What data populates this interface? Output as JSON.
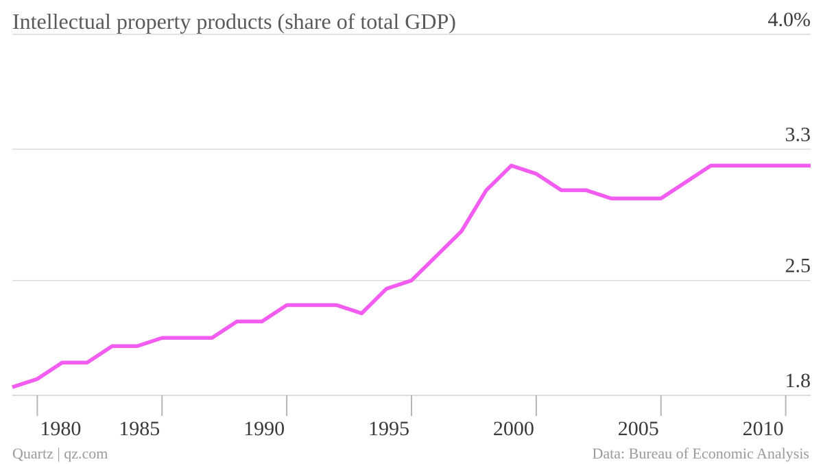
{
  "chart_data": {
    "type": "line",
    "title": "Intellectual property products (share of total GDP)",
    "xlabel": "",
    "ylabel": "",
    "x": [
      1979,
      1980,
      1981,
      1982,
      1983,
      1984,
      1985,
      1986,
      1987,
      1988,
      1989,
      1990,
      1991,
      1992,
      1993,
      1994,
      1995,
      1996,
      1997,
      1998,
      1999,
      2000,
      2001,
      2002,
      2003,
      2004,
      2005,
      2006,
      2007,
      2008,
      2009,
      2010,
      2011
    ],
    "series": [
      {
        "values": [
          1.85,
          1.9,
          2.0,
          2.0,
          2.1,
          2.1,
          2.15,
          2.15,
          2.15,
          2.25,
          2.25,
          2.35,
          2.35,
          2.35,
          2.3,
          2.45,
          2.5,
          2.65,
          2.8,
          3.05,
          3.2,
          3.15,
          3.05,
          3.05,
          3.0,
          3.0,
          3.0,
          3.1,
          3.2,
          3.2,
          3.2,
          3.2,
          3.2
        ],
        "color": "#f25cf0"
      }
    ],
    "ylim": [
      1.8,
      4.0
    ],
    "yticks": [
      {
        "value": 4.0,
        "label": "4.0%"
      },
      {
        "value": 3.3,
        "label": "3.3"
      },
      {
        "value": 2.5,
        "label": "2.5"
      },
      {
        "value": 1.8,
        "label": "1.8"
      }
    ],
    "xticks": [
      {
        "value": 1980,
        "label": "1980"
      },
      {
        "value": 1985,
        "label": "1985"
      },
      {
        "value": 1990,
        "label": "1990"
      },
      {
        "value": 1995,
        "label": "1995"
      },
      {
        "value": 2000,
        "label": "2000"
      },
      {
        "value": 2005,
        "label": "2005"
      },
      {
        "value": 2010,
        "label": "2010"
      }
    ],
    "grid": true,
    "y_axis_position": "right"
  },
  "footer": {
    "source_left": "Quartz | qz.com",
    "source_right": "Data: Bureau of Economic Analysis"
  }
}
